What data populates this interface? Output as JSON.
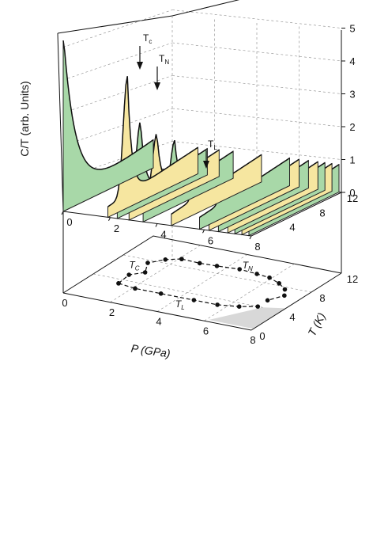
{
  "chart_data": {
    "type": "area",
    "subtype": "3d-waterfall-with-phase-diagram",
    "ylabel": "C/T (arb. Units)",
    "xlabel": "P (GPa)",
    "zlabel": "T (K)",
    "top_panel": {
      "p_axis": {
        "ticks": [
          "0",
          "2",
          "4",
          "6",
          "8"
        ],
        "range": [
          0,
          8
        ]
      },
      "t_axis": {
        "ticks": [
          "4",
          "8",
          "12"
        ],
        "range": [
          0,
          12
        ]
      },
      "c_axis": {
        "ticks": [
          "0",
          "1",
          "2",
          "3",
          "4",
          "5"
        ],
        "range": [
          0,
          5
        ]
      },
      "fill_colors": [
        "#a8d8a8",
        "#f6e6a0"
      ],
      "curves": [
        {
          "pressure": 0.0,
          "color": "#a8d8a8",
          "peak_T": 0.0,
          "peak_height": 5.2,
          "tail": 0.25
        },
        {
          "pressure": 1.9,
          "color": "#f6e6a0",
          "peak_T": 2.6,
          "peak_height": 3.9,
          "tail": 0.32
        },
        {
          "pressure": 2.3,
          "color": "#a8d8a8",
          "peak_T": 3.1,
          "peak_height": 2.5,
          "tail": 0.32
        },
        {
          "pressure": 2.8,
          "color": "#f6e6a0",
          "peak_T": 3.7,
          "peak_height": 2.1,
          "tail": 0.33
        },
        {
          "pressure": 3.4,
          "color": "#a8d8a8",
          "peak_T": 4.2,
          "peak_height": 1.85,
          "tail": 0.34
        },
        {
          "pressure": 4.6,
          "color": "#f6e6a0",
          "peak_T": 3.6,
          "peak_height": 1.6,
          "tail": 0.35
        },
        {
          "pressure": 5.8,
          "color": "#a8d8a8",
          "peak_T": 3.5,
          "peak_height": 1.45,
          "tail": 0.36
        },
        {
          "pressure": 6.2,
          "color": "#f6e6a0",
          "peak_T": 4.6,
          "peak_height": 1.2,
          "tail": 0.36
        },
        {
          "pressure": 6.6,
          "color": "#a8d8a8",
          "peak_T": 5.0,
          "peak_height": 1.05,
          "tail": 0.36
        },
        {
          "pressure": 7.0,
          "color": "#f6e6a0",
          "peak_T": 5.4,
          "peak_height": 0.95,
          "tail": 0.36
        },
        {
          "pressure": 7.3,
          "color": "#a8d8a8",
          "peak_T": 5.6,
          "peak_height": 0.85,
          "tail": 0.36
        },
        {
          "pressure": 7.6,
          "color": "#f6e6a0",
          "peak_T": 5.8,
          "peak_height": 0.75,
          "tail": 0.36
        },
        {
          "pressure": 7.9,
          "color": "#a8d8a8",
          "peak_T": 6.0,
          "peak_height": 0.65,
          "tail": 0.36
        }
      ],
      "annotations": [
        {
          "main": "T",
          "sub": "c"
        },
        {
          "main": "T",
          "sub": "N"
        },
        {
          "main": "T",
          "sub": "L"
        }
      ]
    },
    "bottom_panel": {
      "p_axis": {
        "ticks": [
          "0",
          "2",
          "4",
          "6",
          "8"
        ],
        "range": [
          0,
          8
        ]
      },
      "t_axis": {
        "ticks": [
          "0",
          "4",
          "8",
          "12"
        ],
        "range": [
          0,
          12
        ]
      },
      "phase_lines": [
        {
          "name": "T_C",
          "label_main": "T",
          "label_sub": "C",
          "points": [
            [
              1.3,
              3.3
            ],
            [
              1.2,
              5.0
            ],
            [
              1.6,
              5.9
            ],
            [
              1.2,
              7.5
            ],
            [
              1.6,
              8.6
            ],
            [
              2.1,
              9.2
            ]
          ]
        },
        {
          "name": "T_N",
          "label_main": "T",
          "label_sub": "N",
          "points": [
            [
              2.1,
              9.2
            ],
            [
              2.9,
              9.1
            ],
            [
              3.6,
              9.2
            ],
            [
              4.5,
              9.4
            ],
            [
              5.3,
              9.2
            ],
            [
              5.9,
              9.0
            ],
            [
              6.5,
              8.4
            ],
            [
              7.0,
              7.6
            ],
            [
              7.3,
              6.6
            ],
            [
              7.0,
              5.3
            ]
          ]
        },
        {
          "name": "T_L",
          "label_main": "T",
          "label_sub": "L",
          "points": [
            [
              1.3,
              3.3
            ],
            [
              2.1,
              3.0
            ],
            [
              3.2,
              3.0
            ],
            [
              4.6,
              3.0
            ],
            [
              5.6,
              3.0
            ],
            [
              6.4,
              3.4
            ],
            [
              7.0,
              4.0
            ]
          ]
        }
      ],
      "shaded_region": [
        [
          6.1,
          0.3
        ],
        [
          8.0,
          0.3
        ],
        [
          8.0,
          4.6
        ],
        [
          7.2,
          4.0
        ]
      ],
      "shaded_color": "#d8d8d8"
    }
  }
}
